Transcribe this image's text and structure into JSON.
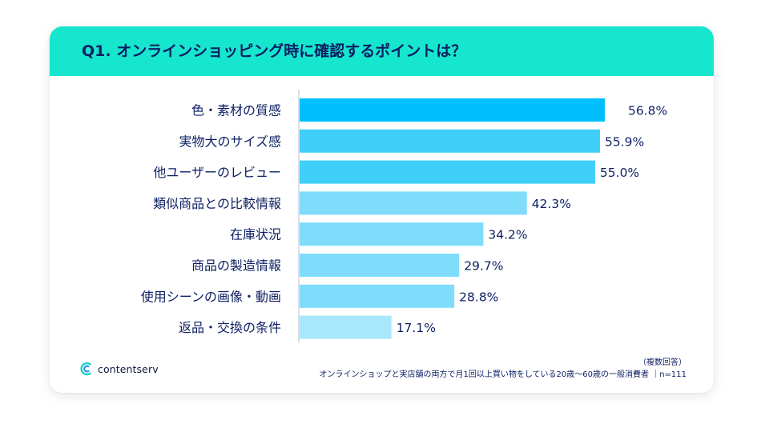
{
  "header": {
    "title": "Q1. オンラインショッピング時に確認するポイントは？"
  },
  "brand": {
    "name": "contentserv",
    "icon": "contentserv-logo-icon"
  },
  "footnote": {
    "note": "（複数回答）",
    "source": "オンラインショップと実店舗の両方で月1回以上買い物をしている20歳〜60歳の一般消費者 ｜n=111"
  },
  "colors": {
    "header_bg": "#16e6cd",
    "text": "#0d1f63",
    "bar_colors": [
      "#00bfff",
      "#3fcff8",
      "#3fcff8",
      "#7fdcfb",
      "#7fdcfb",
      "#7fdcfb",
      "#7fdcfb",
      "#a9e8fc"
    ]
  },
  "chart_data": {
    "type": "bar",
    "orientation": "horizontal",
    "categories": [
      "色・素材の質感",
      "実物大のサイズ感",
      "他ユーザーのレビュー",
      "類似商品との比較情報",
      "在庫状況",
      "商品の製造情報",
      "使用シーンの画像・動画",
      "返品・交換の条件"
    ],
    "values": [
      56.8,
      55.9,
      55.0,
      42.3,
      34.2,
      29.7,
      28.8,
      17.1
    ],
    "value_labels": [
      "56.8%",
      "55.9%",
      "55.0%",
      "42.3%",
      "34.2%",
      "29.7%",
      "28.8%",
      "17.1%"
    ],
    "unit": "%"
  }
}
